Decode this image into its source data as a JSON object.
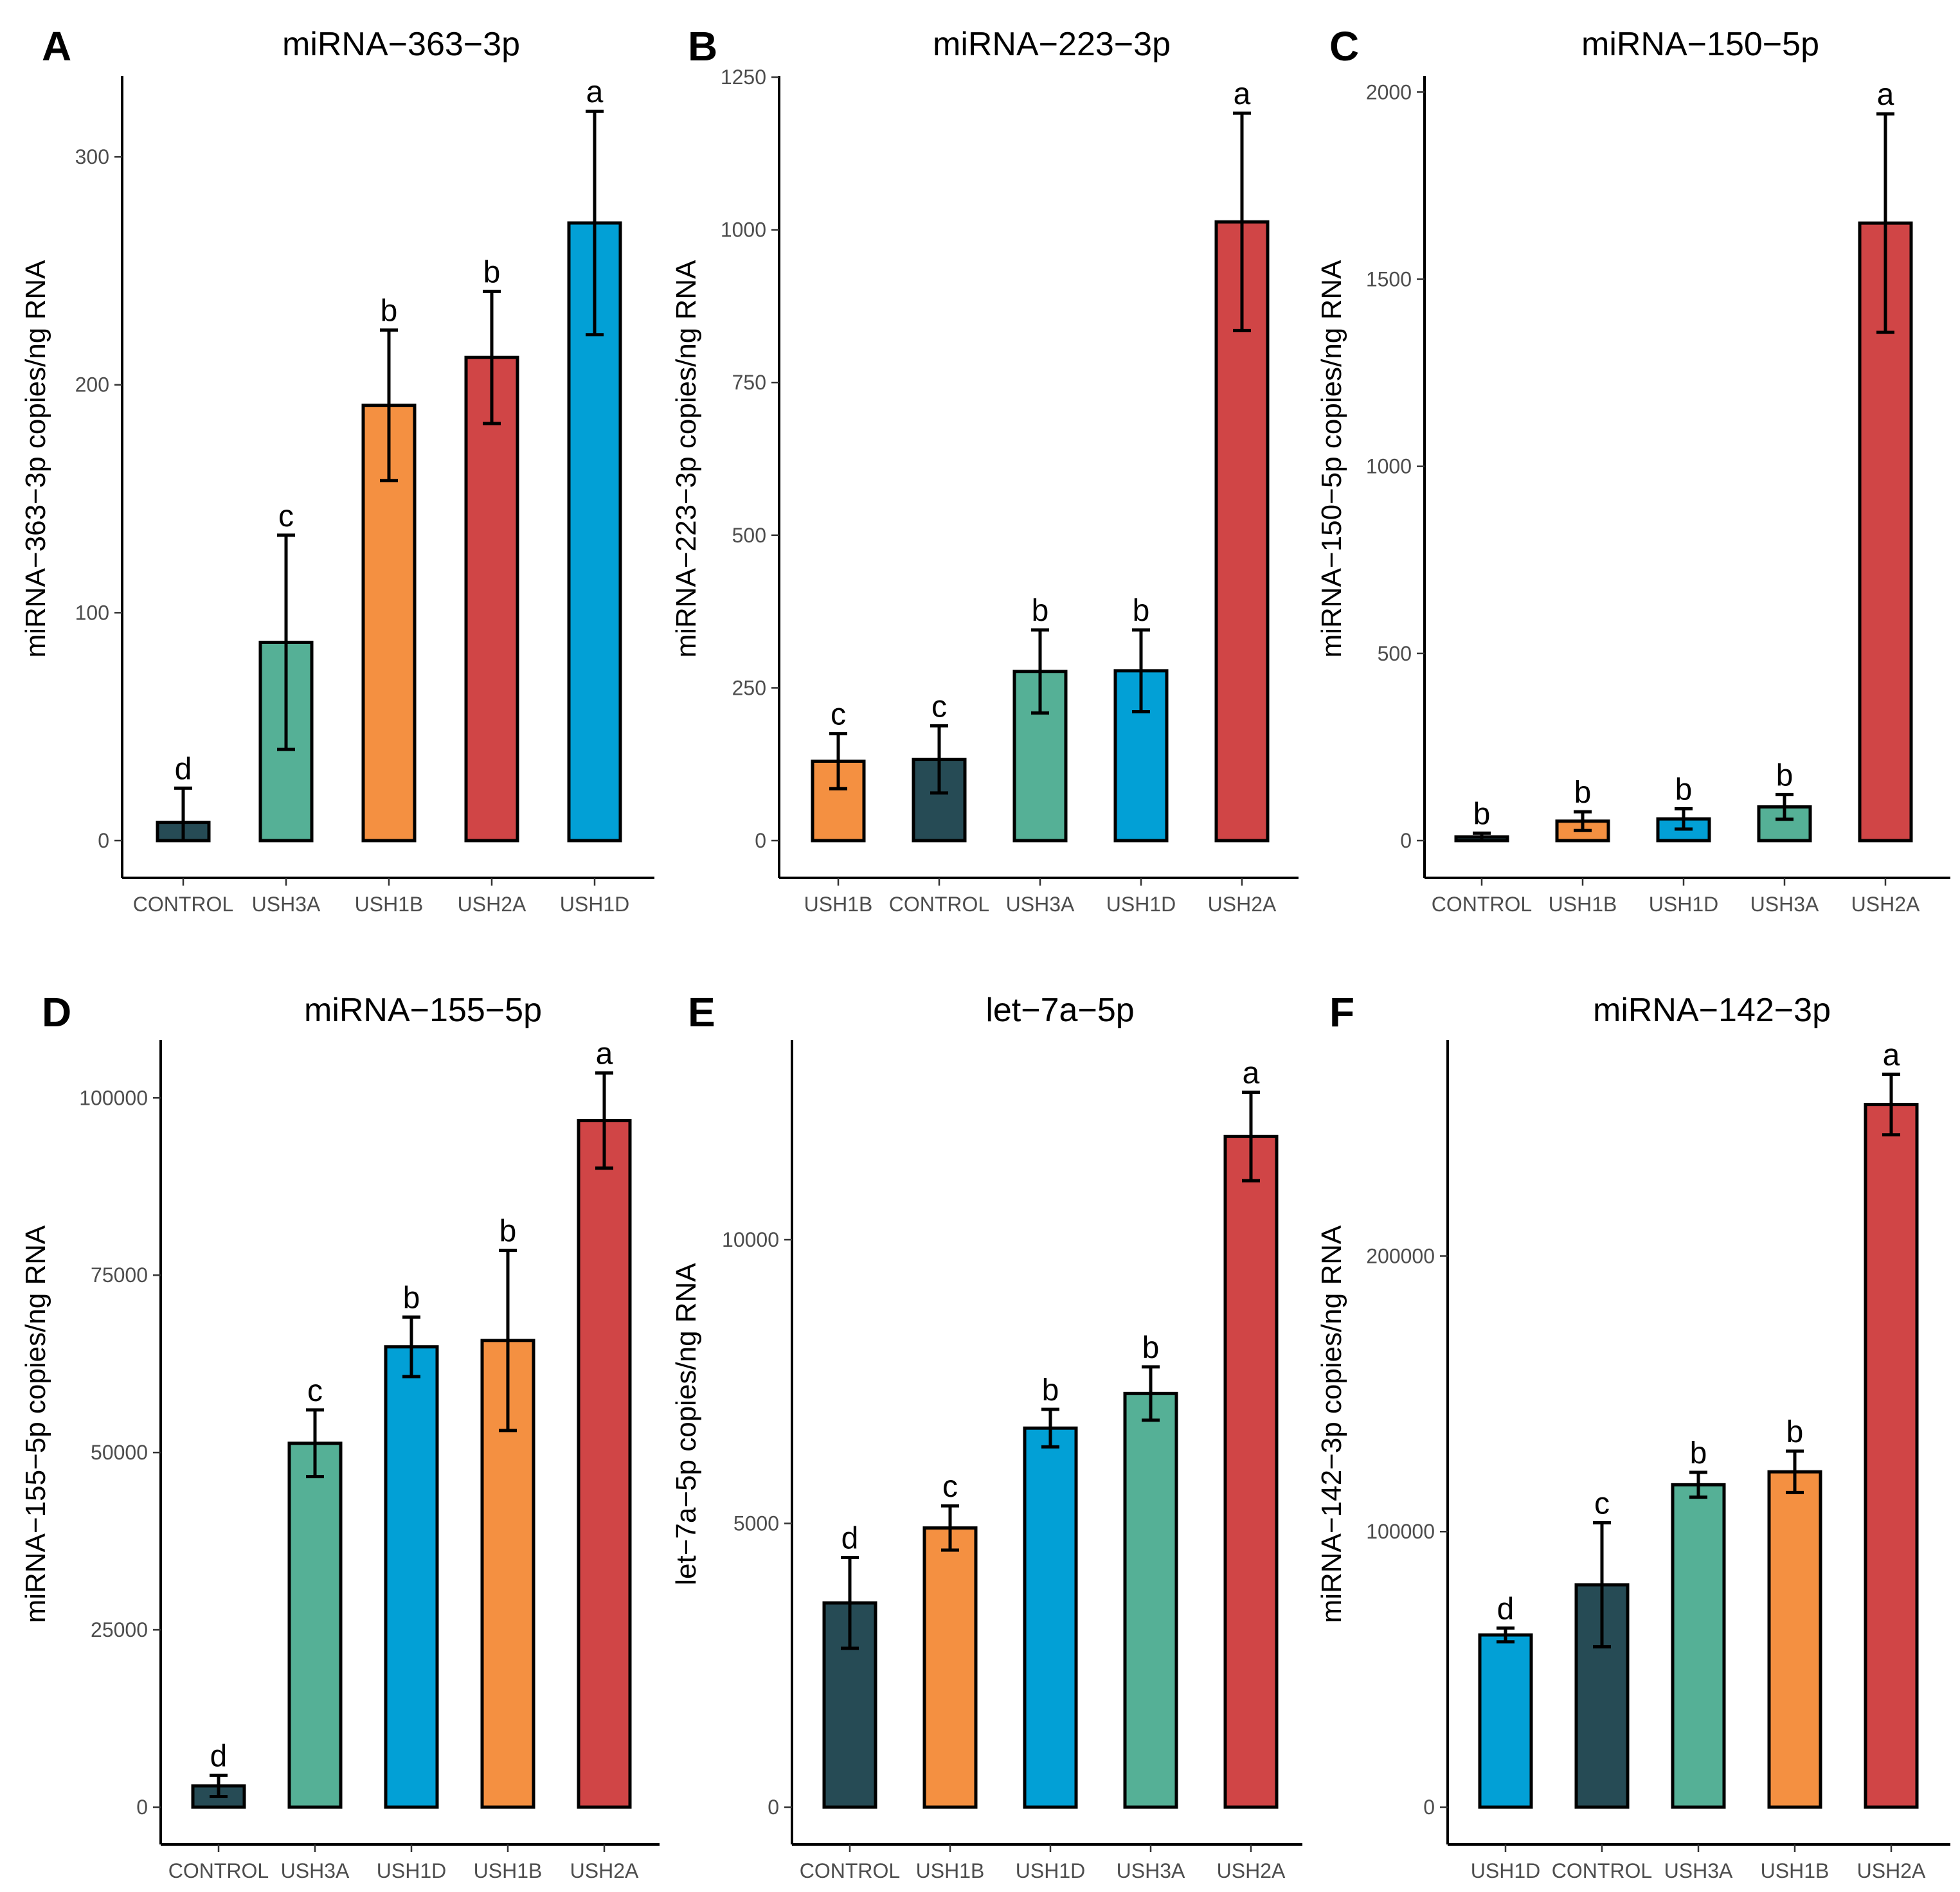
{
  "colors": {
    "CONTROL": "#264b55",
    "USH3A": "#55b096",
    "USH1B": "#f49041",
    "USH2A": "#d04546",
    "USH1D": "#02a0d6"
  },
  "chart_data": [
    {
      "panel": "A",
      "type": "bar",
      "title": "miRNA−363−3p",
      "ylabel": "miRNA−363−3p copies/ng RNA",
      "xlabel": "",
      "ylim": [
        0,
        335
      ],
      "yticks": [
        0,
        100,
        200,
        300
      ],
      "ytick_labels": [
        "0",
        "100",
        "200",
        "300"
      ],
      "categories": [
        "CONTROL",
        "USH3A",
        "USH1B",
        "USH2A",
        "USH1D"
      ],
      "values": [
        8,
        87,
        191,
        212,
        271
      ],
      "errors": [
        15,
        47,
        33,
        29,
        49
      ],
      "significance": [
        "d",
        "c",
        "b",
        "b",
        "a"
      ]
    },
    {
      "panel": "B",
      "type": "bar",
      "title": "miRNA−223−3p",
      "ylabel": "miRNA−223−3p copies/ng RNA",
      "xlabel": "",
      "ylim": [
        0,
        1250
      ],
      "yticks": [
        0,
        250,
        500,
        750,
        1000,
        1250
      ],
      "ytick_labels": [
        "0",
        "250",
        "500",
        "750",
        "1000",
        "1250"
      ],
      "categories": [
        "USH1B",
        "CONTROL",
        "USH3A",
        "USH1D",
        "USH2A"
      ],
      "values": [
        130,
        133,
        277,
        278,
        1013
      ],
      "errors": [
        45,
        55,
        68,
        67,
        178
      ],
      "significance": [
        "c",
        "c",
        "b",
        "b",
        "a"
      ]
    },
    {
      "panel": "C",
      "type": "bar",
      "title": "miRNA−150−5p",
      "ylabel": "miRNA−150−5p copies/ng RNA",
      "xlabel": "",
      "ylim": [
        0,
        2040
      ],
      "yticks": [
        0,
        500,
        1000,
        1500,
        2000
      ],
      "ytick_labels": [
        "0",
        "500",
        "1000",
        "1500",
        "2000"
      ],
      "categories": [
        "CONTROL",
        "USH1B",
        "USH1D",
        "USH3A",
        "USH2A"
      ],
      "values": [
        10,
        52,
        58,
        90,
        1650
      ],
      "errors": [
        10,
        25,
        27,
        33,
        292
      ],
      "significance": [
        "b",
        "b",
        "b",
        "b",
        "a"
      ]
    },
    {
      "panel": "D",
      "type": "bar",
      "title": "miRNA−155−5p",
      "ylabel": "miRNA−155−5p copies/ng RNA",
      "xlabel": "",
      "ylim": [
        0,
        108000
      ],
      "yticks": [
        0,
        25000,
        50000,
        75000,
        100000
      ],
      "ytick_labels": [
        "0",
        "25000",
        "50000",
        "75000",
        "100000"
      ],
      "categories": [
        "CONTROL",
        "USH3A",
        "USH1D",
        "USH1B",
        "USH2A"
      ],
      "values": [
        3000,
        51300,
        64900,
        65800,
        96800
      ],
      "errors": [
        1500,
        4700,
        4200,
        12700,
        6700
      ],
      "significance": [
        "d",
        "c",
        "b",
        "b",
        "a"
      ]
    },
    {
      "panel": "E",
      "type": "bar",
      "title": "let−7a−5p",
      "ylabel": "let−7a−5p copies/ng RNA",
      "xlabel": "",
      "ylim": [
        0,
        13500
      ],
      "yticks": [
        0,
        5000,
        10000
      ],
      "ytick_labels": [
        "0",
        "5000",
        "10000"
      ],
      "categories": [
        "CONTROL",
        "USH1B",
        "USH1D",
        "USH3A",
        "USH2A"
      ],
      "values": [
        3600,
        4920,
        6680,
        7290,
        11820
      ],
      "errors": [
        800,
        390,
        330,
        470,
        780
      ],
      "significance": [
        "d",
        "c",
        "b",
        "b",
        "a"
      ]
    },
    {
      "panel": "F",
      "type": "bar",
      "title": "miRNA−142−3p",
      "ylabel": "miRNA−142−3p copies/ng RNA",
      "xlabel": "",
      "ylim": [
        0,
        278000
      ],
      "yticks": [
        0,
        100000,
        200000
      ],
      "ytick_labels": [
        "0",
        "100000",
        "200000"
      ],
      "categories": [
        "USH1D",
        "CONTROL",
        "USH3A",
        "USH1B",
        "USH2A"
      ],
      "values": [
        62500,
        80700,
        117000,
        121700,
        255000
      ],
      "errors": [
        2500,
        22500,
        4500,
        7500,
        11000
      ],
      "significance": [
        "d",
        "c",
        "b",
        "b",
        "a"
      ]
    }
  ]
}
